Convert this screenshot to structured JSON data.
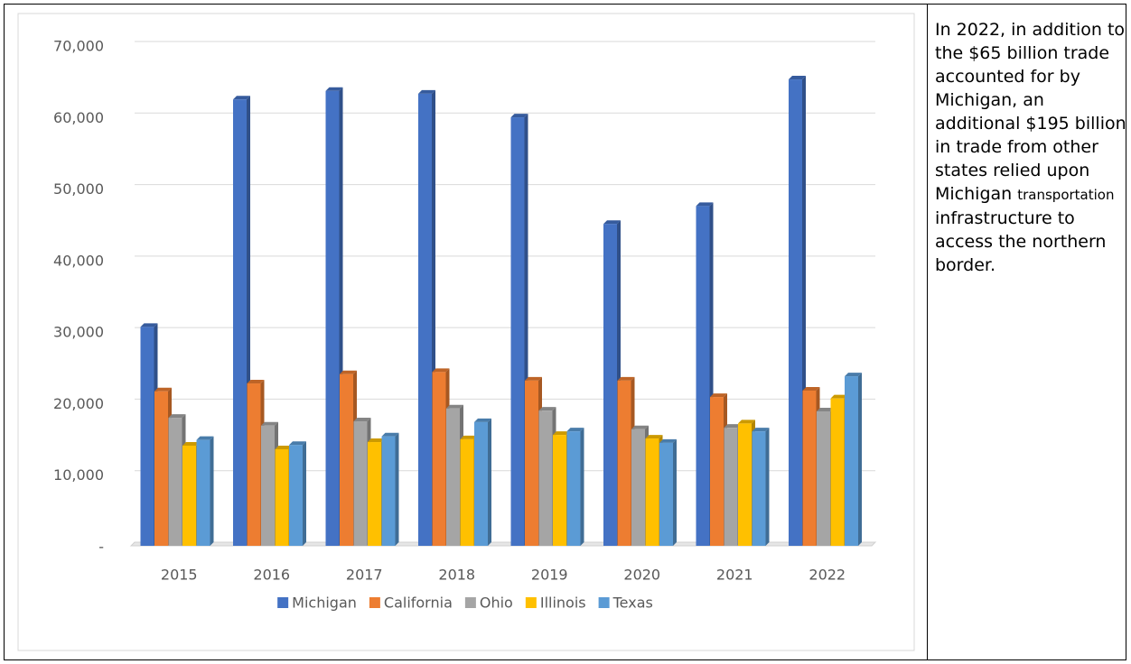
{
  "chart_data": {
    "type": "bar3d",
    "categories": [
      "2015",
      "2016",
      "2017",
      "2018",
      "2019",
      "2020",
      "2021",
      "2022"
    ],
    "series": [
      {
        "name": "Michigan",
        "color": "#4472c4",
        "values": [
          30600,
          62400,
          63600,
          63200,
          59900,
          45000,
          47500,
          65200
        ]
      },
      {
        "name": "California",
        "color": "#ed7d31",
        "values": [
          21600,
          22700,
          24000,
          24300,
          23100,
          23100,
          20800,
          21700
        ]
      },
      {
        "name": "Ohio",
        "color": "#a5a5a5",
        "values": [
          17900,
          16800,
          17400,
          19200,
          18900,
          16300,
          16500,
          18800
        ]
      },
      {
        "name": "Illinois",
        "color": "#ffc000",
        "values": [
          14000,
          13500,
          14500,
          14900,
          15500,
          15000,
          17100,
          20600
        ]
      },
      {
        "name": "Texas",
        "color": "#5b9bd5",
        "values": [
          14800,
          14100,
          15300,
          17300,
          16000,
          14400,
          16000,
          23700
        ]
      }
    ],
    "ylim": [
      0,
      70000
    ],
    "yticks": [
      {
        "value": 0,
        "label": "-"
      },
      {
        "value": 10000,
        "label": "10,000"
      },
      {
        "value": 20000,
        "label": "20,000"
      },
      {
        "value": 30000,
        "label": "30,000"
      },
      {
        "value": 40000,
        "label": "40,000"
      },
      {
        "value": 50000,
        "label": "50,000"
      },
      {
        "value": 60000,
        "label": "60,000"
      },
      {
        "value": 70000,
        "label": "70,000"
      }
    ],
    "grid": true,
    "legend": "bottom"
  },
  "note": {
    "parts": [
      "In 2022, in addition to the $65 billion trade accounted for by Michigan, an additional $195 billion in trade from other states relied upon Michigan",
      "transportation",
      "infrastructure to access the northern border."
    ]
  }
}
